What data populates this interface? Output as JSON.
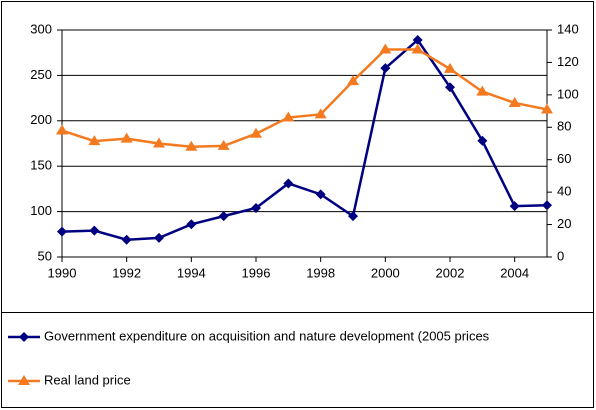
{
  "chart_data": {
    "type": "line",
    "x": [
      1990,
      1991,
      1992,
      1993,
      1994,
      1995,
      1996,
      1997,
      1998,
      1999,
      2000,
      2001,
      2002,
      2003,
      2004,
      2005
    ],
    "xlim": [
      1990,
      2005
    ],
    "xticks": [
      1990,
      1992,
      1994,
      1996,
      1998,
      2000,
      2002,
      2004
    ],
    "ylim": [
      50,
      300
    ],
    "yticks": [
      50,
      100,
      150,
      200,
      250,
      300
    ],
    "y2lim": [
      0,
      140
    ],
    "y2ticks": [
      0,
      20,
      40,
      60,
      80,
      100,
      120,
      140
    ],
    "grid": true,
    "legend": "bottom",
    "series": [
      {
        "name": "Government expenditure on acquisition and nature development (2005 prices",
        "color": "#000080",
        "marker": "diamond",
        "values": [
          78,
          79,
          69,
          71,
          86,
          95,
          104,
          131,
          119,
          95,
          258,
          289,
          237,
          178,
          106,
          107
        ]
      },
      {
        "name": "Real land price",
        "color": "#f47a20",
        "marker": "triangle",
        "axis": "y2",
        "values": [
          78,
          71.5,
          73,
          70,
          68,
          68.5,
          76,
          86,
          88,
          108.5,
          128,
          128,
          116,
          102,
          95,
          91
        ]
      }
    ]
  }
}
